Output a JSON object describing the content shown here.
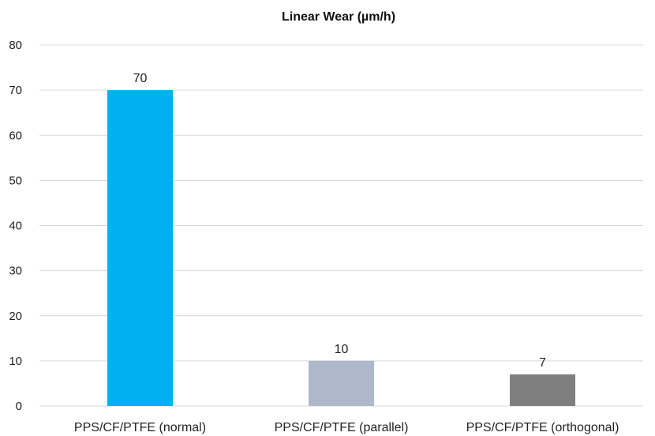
{
  "chart_data": {
    "type": "bar",
    "title": "Linear Wear (µm/h)",
    "xlabel": "",
    "ylabel": "",
    "categories": [
      "PPS/CF/PTFE (normal)",
      "PPS/CF/PTFE (parallel)",
      "PPS/CF/PTFE (orthogonal)"
    ],
    "values": [
      70,
      10,
      7
    ],
    "value_labels": [
      "70",
      "10",
      "7"
    ],
    "bar_colors": [
      "#00b0f0",
      "#adb9ca",
      "#7f7f7f"
    ],
    "ylim": [
      0,
      80
    ],
    "yticks": [
      0,
      10,
      20,
      30,
      40,
      50,
      60,
      70,
      80
    ],
    "grid": true,
    "legend": "none"
  }
}
